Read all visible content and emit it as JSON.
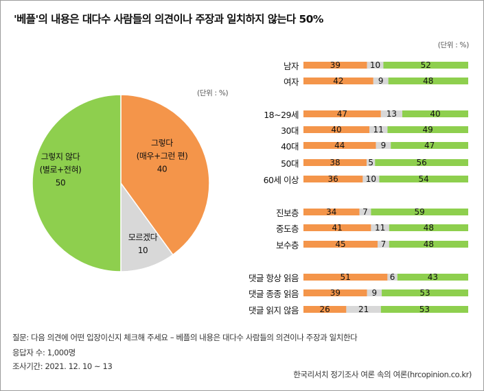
{
  "title": "'베플'의 내용은 대다수 사람들의 의견이나 주장과 일치하지 않는다 50%",
  "colors": {
    "agree": "#F4954A",
    "dontknow": "#D8D8D8",
    "disagree": "#8ECF4E"
  },
  "chart_data": [
    {
      "type": "pie",
      "unit_label": "(단위 : %)",
      "slices": [
        {
          "name": "그렇다",
          "sub": "(매우+그런 편)",
          "value": 40,
          "color": "#F4954A"
        },
        {
          "name": "모르겠다",
          "sub": "",
          "value": 10,
          "color": "#D8D8D8"
        },
        {
          "name": "그렇지 않다",
          "sub": "(별로+전혀)",
          "value": 50,
          "color": "#8ECF4E"
        }
      ]
    },
    {
      "type": "bar",
      "stacked": true,
      "orientation": "horizontal",
      "unit_label": "(단위 : %)",
      "series": [
        "그렇다",
        "모르겠다",
        "그렇지 않다"
      ],
      "rows": [
        {
          "label": "남자",
          "values": [
            39,
            10,
            52
          ]
        },
        {
          "label": "여자",
          "values": [
            42,
            9,
            48
          ]
        },
        {
          "label": "18~29세",
          "values": [
            47,
            13,
            40
          ]
        },
        {
          "label": "30대",
          "values": [
            40,
            11,
            49
          ]
        },
        {
          "label": "40대",
          "values": [
            44,
            9,
            47
          ]
        },
        {
          "label": "50대",
          "values": [
            38,
            5,
            56
          ]
        },
        {
          "label": "60세 이상",
          "values": [
            36,
            10,
            54
          ]
        },
        {
          "label": "진보층",
          "values": [
            34,
            7,
            59
          ]
        },
        {
          "label": "중도층",
          "values": [
            41,
            11,
            48
          ]
        },
        {
          "label": "보수층",
          "values": [
            45,
            7,
            48
          ]
        },
        {
          "label": "댓글 항상 읽음",
          "values": [
            51,
            6,
            43
          ]
        },
        {
          "label": "댓글 종종 읽음",
          "values": [
            39,
            9,
            53
          ]
        },
        {
          "label": "댓글 읽지 않음",
          "values": [
            26,
            21,
            53
          ]
        }
      ]
    }
  ],
  "footer": {
    "question": "질문:  다음 의견에 어떤 입장이신지 체크해 주세요 – 베플의 내용은 대다수 사람들의 의견이나 주장과 일치한다",
    "respondents": "응답자 수: 1,000명",
    "period": "조사기간: 2021. 12. 10 ~ 13",
    "source": "한국리서치 정기조사 여론 속의 여론(hrcopinion.co.kr)"
  }
}
